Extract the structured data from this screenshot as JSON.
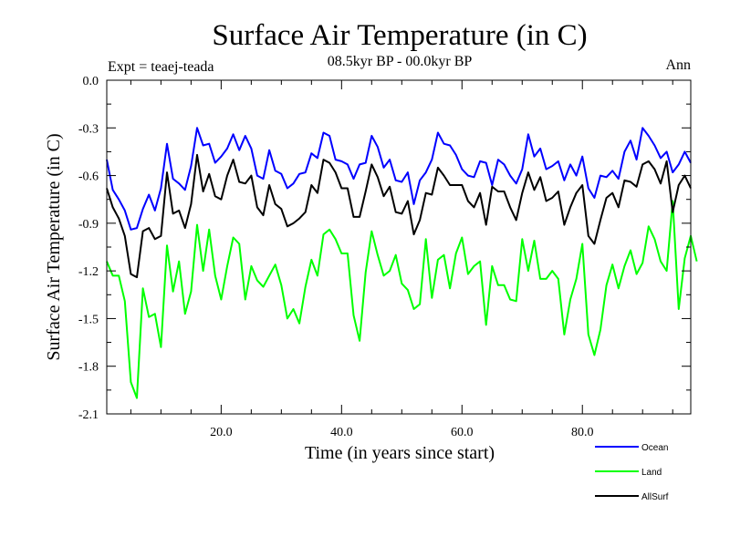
{
  "chart_data": {
    "type": "line",
    "title": "Surface Air Temperature (in C)",
    "subtitle": "08.5kyr BP - 00.0kyr BP",
    "left_label": "Expt = teaej-teada",
    "right_label": "Ann",
    "xlabel": "Time (in years since start)",
    "ylabel": "Surface Air Temperature (in C)",
    "xlim": [
      1,
      98
    ],
    "ylim": [
      -2.1,
      0.0
    ],
    "xticks": [
      20,
      40,
      60,
      80
    ],
    "xtick_labels": [
      "20.0",
      "40.0",
      "60.0",
      "80.0"
    ],
    "yticks": [
      0.0,
      -0.3,
      -0.6,
      -0.9,
      -1.2,
      -1.5,
      -1.8,
      -2.1
    ],
    "ytick_labels": [
      "0.0",
      "-0.3",
      "-0.6",
      "-0.9",
      "-1.2",
      "-1.5",
      "-1.8",
      "-2.1"
    ],
    "legend_position": "bottom-right, below plot",
    "series": [
      {
        "name": "Ocean",
        "color": "#0000ff",
        "values": [
          -0.5,
          -0.69,
          -0.75,
          -0.82,
          -0.94,
          -0.93,
          -0.81,
          -0.72,
          -0.82,
          -0.68,
          -0.4,
          -0.62,
          -0.65,
          -0.69,
          -0.54,
          -0.3,
          -0.41,
          -0.4,
          -0.52,
          -0.48,
          -0.43,
          -0.34,
          -0.44,
          -0.35,
          -0.43,
          -0.6,
          -0.62,
          -0.44,
          -0.57,
          -0.59,
          -0.68,
          -0.65,
          -0.59,
          -0.58,
          -0.46,
          -0.49,
          -0.33,
          -0.35,
          -0.5,
          -0.51,
          -0.53,
          -0.62,
          -0.53,
          -0.52,
          -0.35,
          -0.42,
          -0.55,
          -0.5,
          -0.63,
          -0.64,
          -0.58,
          -0.78,
          -0.63,
          -0.58,
          -0.5,
          -0.33,
          -0.4,
          -0.41,
          -0.47,
          -0.56,
          -0.6,
          -0.61,
          -0.51,
          -0.52,
          -0.66,
          -0.5,
          -0.53,
          -0.6,
          -0.65,
          -0.56,
          -0.34,
          -0.48,
          -0.43,
          -0.56,
          -0.54,
          -0.51,
          -0.63,
          -0.53,
          -0.6,
          -0.48,
          -0.68,
          -0.74,
          -0.6,
          -0.61,
          -0.57,
          -0.62,
          -0.45,
          -0.38,
          -0.5,
          -0.3,
          -0.35,
          -0.41,
          -0.49,
          -0.45,
          -0.58,
          -0.53,
          -0.45,
          -0.52
        ]
      },
      {
        "name": "Land",
        "color": "#00ff00",
        "values": [
          -1.14,
          -1.23,
          -1.23,
          -1.39,
          -1.9,
          -2.0,
          -1.31,
          -1.49,
          -1.47,
          -1.68,
          -1.04,
          -1.33,
          -1.14,
          -1.47,
          -1.33,
          -0.91,
          -1.2,
          -0.94,
          -1.23,
          -1.38,
          -1.17,
          -0.99,
          -1.03,
          -1.38,
          -1.17,
          -1.26,
          -1.3,
          -1.23,
          -1.16,
          -1.29,
          -1.5,
          -1.44,
          -1.53,
          -1.3,
          -1.13,
          -1.23,
          -0.97,
          -0.94,
          -1.0,
          -1.09,
          -1.09,
          -1.48,
          -1.64,
          -1.21,
          -0.95,
          -1.1,
          -1.23,
          -1.2,
          -1.1,
          -1.28,
          -1.32,
          -1.44,
          -1.41,
          -1.0,
          -1.37,
          -1.13,
          -1.1,
          -1.31,
          -1.09,
          -0.99,
          -1.22,
          -1.17,
          -1.14,
          -1.54,
          -1.17,
          -1.29,
          -1.29,
          -1.38,
          -1.39,
          -1.0,
          -1.2,
          -1.01,
          -1.25,
          -1.25,
          -1.2,
          -1.25,
          -1.6,
          -1.38,
          -1.25,
          -1.03,
          -1.6,
          -1.73,
          -1.57,
          -1.29,
          -1.16,
          -1.31,
          -1.17,
          -1.07,
          -1.22,
          -1.15,
          -0.92,
          -1.0,
          -1.14,
          -1.2,
          -0.76,
          -1.44,
          -1.12,
          -0.98,
          -1.14
        ]
      },
      {
        "name": "AllSurf",
        "color": "#000000",
        "values": [
          -0.68,
          -0.8,
          -0.87,
          -0.98,
          -1.22,
          -1.24,
          -0.95,
          -0.93,
          -1.0,
          -0.98,
          -0.58,
          -0.84,
          -0.82,
          -0.93,
          -0.78,
          -0.47,
          -0.7,
          -0.59,
          -0.73,
          -0.75,
          -0.6,
          -0.5,
          -0.64,
          -0.65,
          -0.6,
          -0.8,
          -0.85,
          -0.66,
          -0.78,
          -0.81,
          -0.92,
          -0.9,
          -0.87,
          -0.83,
          -0.66,
          -0.71,
          -0.5,
          -0.52,
          -0.58,
          -0.68,
          -0.68,
          -0.86,
          -0.86,
          -0.7,
          -0.53,
          -0.61,
          -0.73,
          -0.67,
          -0.83,
          -0.84,
          -0.76,
          -0.97,
          -0.88,
          -0.71,
          -0.72,
          -0.55,
          -0.6,
          -0.66,
          -0.66,
          -0.66,
          -0.76,
          -0.8,
          -0.71,
          -0.91,
          -0.67,
          -0.7,
          -0.7,
          -0.8,
          -0.88,
          -0.71,
          -0.58,
          -0.69,
          -0.61,
          -0.76,
          -0.74,
          -0.7,
          -0.91,
          -0.8,
          -0.71,
          -0.66,
          -0.98,
          -1.03,
          -0.88,
          -0.74,
          -0.71,
          -0.8,
          -0.63,
          -0.64,
          -0.67,
          -0.53,
          -0.51,
          -0.56,
          -0.65,
          -0.51,
          -0.83,
          -0.66,
          -0.6,
          -0.68
        ]
      }
    ]
  }
}
